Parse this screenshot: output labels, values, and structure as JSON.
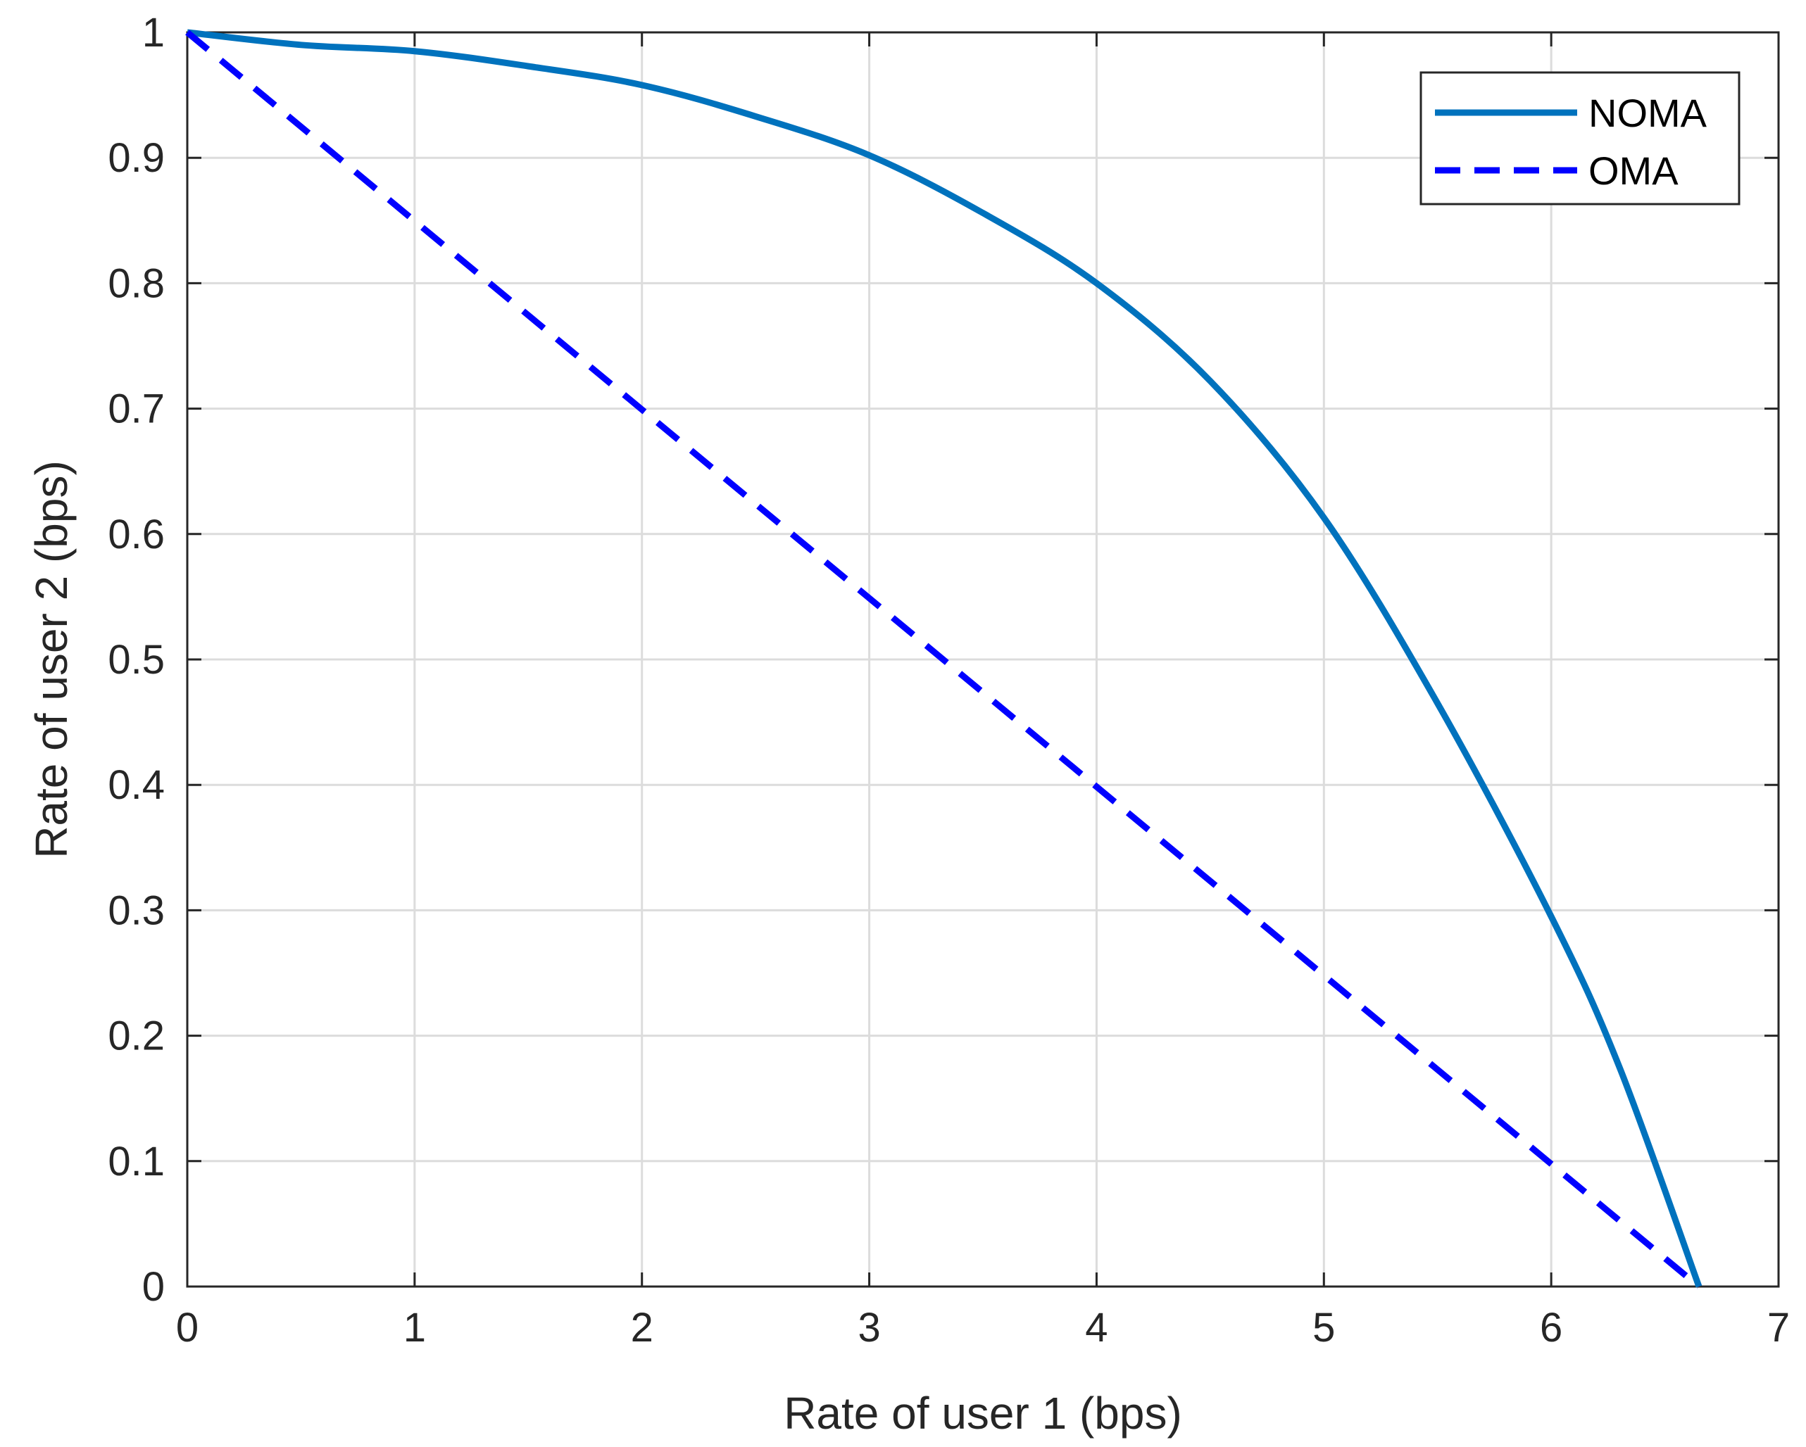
{
  "chart_data": {
    "type": "line",
    "xlabel": "Rate of user 1 (bps)",
    "ylabel": "Rate of user 2 (bps)",
    "xlim": [
      0,
      7
    ],
    "ylim": [
      0,
      1
    ],
    "xticks": [
      "0",
      "1",
      "2",
      "3",
      "4",
      "5",
      "6",
      "7"
    ],
    "yticks": [
      "0",
      "0.1",
      "0.2",
      "0.3",
      "0.4",
      "0.5",
      "0.6",
      "0.7",
      "0.8",
      "0.9",
      "1"
    ],
    "grid": true,
    "legend_position": "top-right",
    "series": [
      {
        "name": "NOMA",
        "style": "solid",
        "color": "#0072BD",
        "points": [
          [
            0,
            1.0
          ],
          [
            0.5,
            0.99
          ],
          [
            1.0,
            0.985
          ],
          [
            1.5,
            0.973
          ],
          [
            2.0,
            0.958
          ],
          [
            2.5,
            0.933
          ],
          [
            3.0,
            0.902
          ],
          [
            3.5,
            0.856
          ],
          [
            4.0,
            0.8
          ],
          [
            4.5,
            0.722
          ],
          [
            5.0,
            0.613
          ],
          [
            5.5,
            0.465
          ],
          [
            6.0,
            0.295
          ],
          [
            6.3,
            0.175
          ],
          [
            6.65,
            0.0
          ]
        ]
      },
      {
        "name": "OMA",
        "style": "dashed",
        "color": "#0000FF",
        "points": [
          [
            0,
            1.0
          ],
          [
            6.65,
            0.0
          ]
        ]
      }
    ]
  }
}
